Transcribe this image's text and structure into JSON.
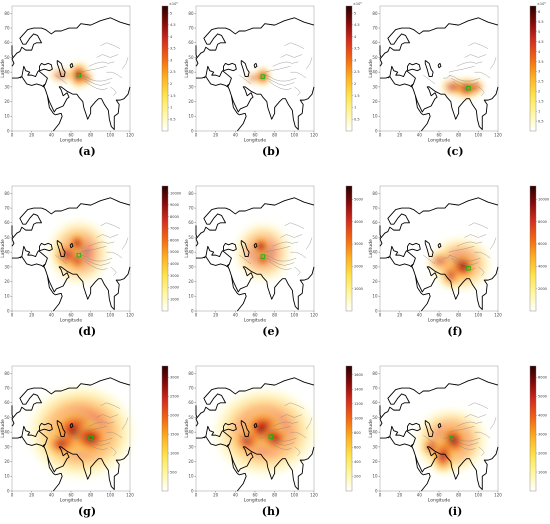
{
  "figure": {
    "x_ticks": [
      "0",
      "20",
      "40",
      "60",
      "80",
      "100",
      "120"
    ],
    "y_ticks": [
      "0",
      "10",
      "20",
      "30",
      "40",
      "50",
      "60",
      "70",
      "80"
    ],
    "xlabel": "Longitude",
    "ylabel": "Latitude",
    "colormap": [
      "#ffffff",
      "#fff7a0",
      "#ffe34a",
      "#ffb020",
      "#f46a10",
      "#d7301f",
      "#8b0a0a",
      "#2a0000"
    ],
    "coastline_color": "#000000",
    "mountain_contour_color": "#888888",
    "marker_color": "#00c000"
  },
  "panels": [
    {
      "id": "a",
      "caption": "(a)",
      "scale_label": "×10⁵",
      "colorbar_ticks": [
        "0.5",
        "1",
        "1.5",
        "2",
        "2.5",
        "3",
        "3.5",
        "4",
        "4.5",
        "5"
      ],
      "marker": {
        "lon": 68,
        "lat": 38
      }
    },
    {
      "id": "b",
      "caption": "(b)",
      "scale_label": "×10⁵",
      "colorbar_ticks": [
        "0.5",
        "1",
        "1.5",
        "2",
        "2.5",
        "3",
        "3.5",
        "4",
        "4.5",
        "5"
      ],
      "marker": {
        "lon": 68,
        "lat": 37
      }
    },
    {
      "id": "c",
      "caption": "(c)",
      "scale_label": "×10⁵",
      "colorbar_ticks": [
        "0.5",
        "1",
        "1.5",
        "2",
        "2.5",
        "3",
        "3.5",
        "4",
        "4.5",
        "5",
        "5.5",
        "6"
      ],
      "marker": {
        "lon": 90,
        "lat": 29
      }
    },
    {
      "id": "d",
      "caption": "(d)",
      "scale_label": "",
      "colorbar_ticks": [
        "1000",
        "2000",
        "3000",
        "4000",
        "5000",
        "6000",
        "7000",
        "8000",
        "9000",
        "10000"
      ],
      "marker": {
        "lon": 68,
        "lat": 38
      }
    },
    {
      "id": "e",
      "caption": "(e)",
      "scale_label": "",
      "colorbar_ticks": [
        "1000",
        "2000",
        "3000",
        "4000",
        "5000"
      ],
      "marker": {
        "lon": 68,
        "lat": 37
      }
    },
    {
      "id": "f",
      "caption": "(f)",
      "scale_label": "",
      "colorbar_ticks": [
        "2000",
        "4000",
        "6000",
        "8000",
        "10000"
      ],
      "marker": {
        "lon": 90,
        "lat": 29
      }
    },
    {
      "id": "g",
      "caption": "(g)",
      "scale_label": "",
      "colorbar_ticks": [
        "500",
        "1000",
        "1500",
        "2000",
        "2500",
        "3000"
      ],
      "marker": {
        "lon": 80,
        "lat": 36
      }
    },
    {
      "id": "h",
      "caption": "(h)",
      "scale_label": "",
      "colorbar_ticks": [
        "200",
        "400",
        "600",
        "800",
        "1000",
        "1200",
        "1400",
        "1600"
      ],
      "marker": {
        "lon": 76,
        "lat": 37
      }
    },
    {
      "id": "i",
      "caption": "(i)",
      "scale_label": "",
      "colorbar_ticks": [
        "1000",
        "2000",
        "3000",
        "4000",
        "5000",
        "6000"
      ],
      "marker": {
        "lon": 73,
        "lat": 36
      }
    }
  ]
}
